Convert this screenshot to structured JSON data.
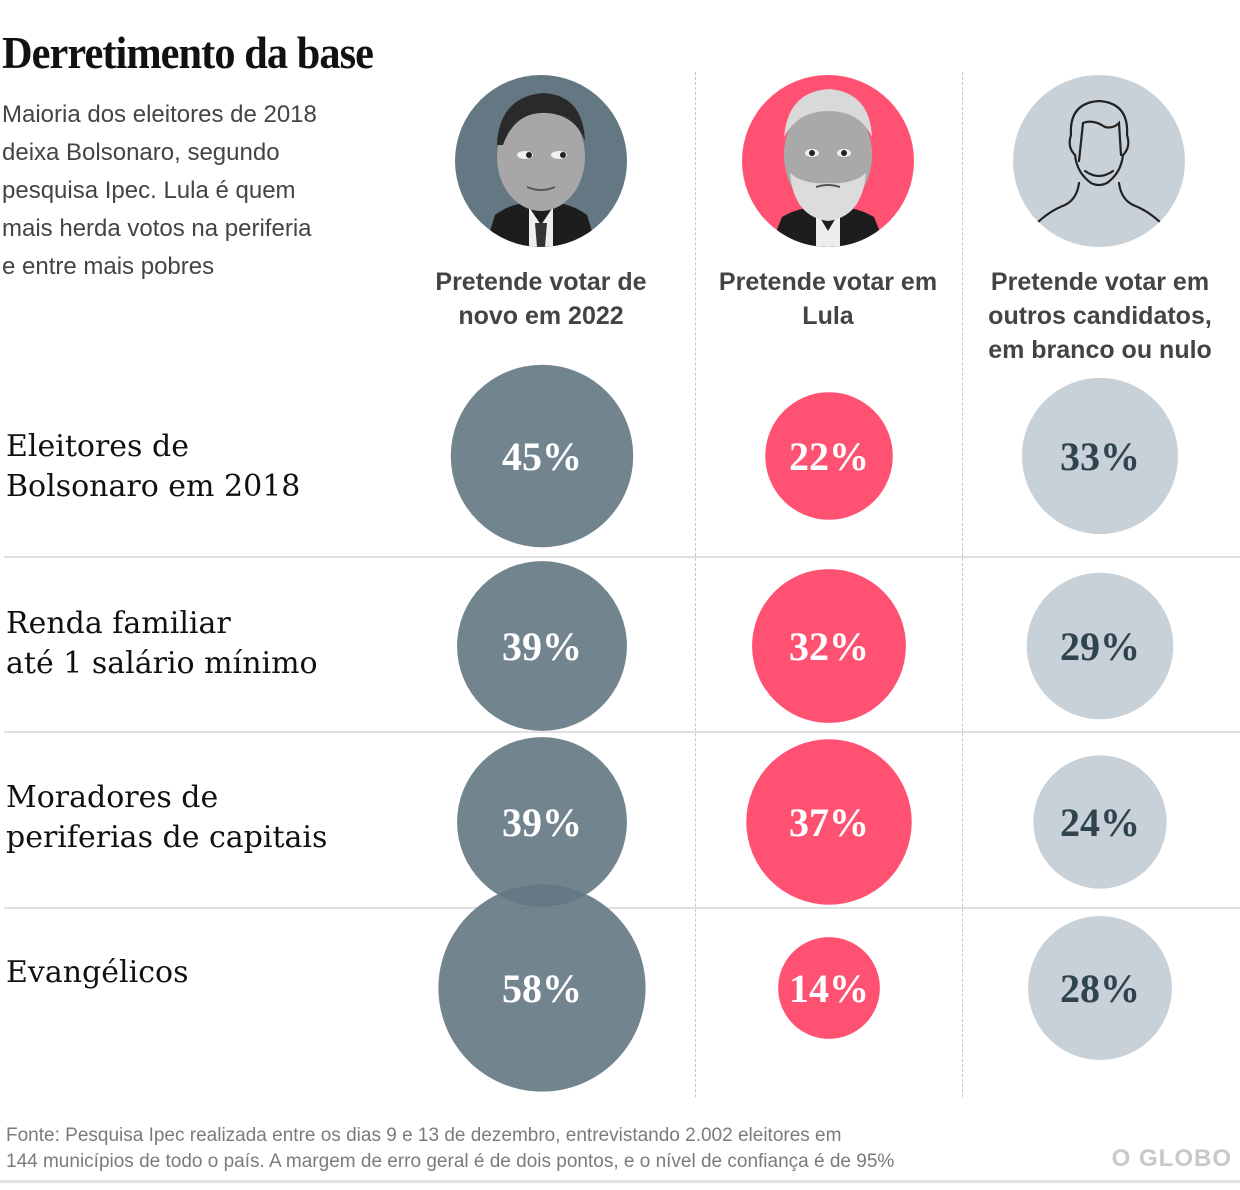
{
  "header": {
    "title": "Derretimento da base",
    "subtitle": "Maioria dos eleitores de 2018 deixa Bolsonaro, segundo pesquisa Ipec. Lula é quem mais herda votos na periferia e entre mais pobres"
  },
  "columns": [
    {
      "label": "Pretende votar de novo em 2022",
      "avatar": "bolsonaro-photo",
      "color": "#637882",
      "text_color": "#ffffff"
    },
    {
      "label": "Pretende votar em Lula",
      "avatar": "lula-photo",
      "color": "#ff5273",
      "text_color": "#ffffff"
    },
    {
      "label": "Pretende votar em outros candidatos, em branco ou nulo",
      "avatar": "generic-person-icon",
      "color": "#c9d1d8",
      "text_color": "#2f444e"
    }
  ],
  "rows": [
    {
      "label_line1": "Eleitores de",
      "label_line2": "Bolsonaro em 2018"
    },
    {
      "label_line1": "Renda familiar",
      "label_line2": "até 1 salário mínimo"
    },
    {
      "label_line1": "Moradores de",
      "label_line2": "periferias de capitais"
    },
    {
      "label_line1": "Evangélicos",
      "label_line2": ""
    }
  ],
  "chart_data": {
    "type": "bubble-table",
    "title": "Derretimento da base",
    "categories": [
      "Eleitores de Bolsonaro em 2018",
      "Renda familiar até 1 salário mínimo",
      "Moradores de periferias de capitais",
      "Evangélicos"
    ],
    "series": [
      {
        "name": "Pretende votar de novo em 2022",
        "values": [
          45,
          39,
          39,
          58
        ],
        "labels": [
          "45%",
          "39%",
          "39%",
          "58%"
        ]
      },
      {
        "name": "Pretende votar em Lula",
        "values": [
          22,
          32,
          37,
          14
        ],
        "labels": [
          "22%",
          "32%",
          "37%",
          "14%"
        ]
      },
      {
        "name": "Pretende votar em outros candidatos, em branco ou nulo",
        "values": [
          33,
          29,
          24,
          28
        ],
        "labels": [
          "33%",
          "29%",
          "24%",
          "28%"
        ]
      }
    ],
    "unit": "%"
  },
  "footer": {
    "source_line1": "Fonte: Pesquisa Ipec realizada entre os dias 9 e 13 de dezembro, entrevistando 2.002 eleitores em",
    "source_line2": "144 municípios de todo o país. A margem de erro geral é de dois pontos, e o nível de confiança é de 95%",
    "logo": "O GLOBO"
  }
}
